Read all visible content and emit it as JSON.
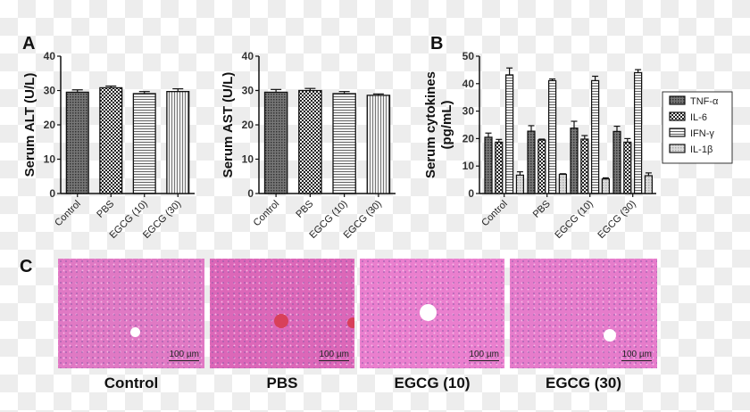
{
  "panels": {
    "a": "A",
    "b": "B",
    "c": "C"
  },
  "chart_data": [
    {
      "type": "bar",
      "ylabel": "Serum ALT (U/L)",
      "categories": [
        "Control",
        "PBS",
        "EGCG (10)",
        "EGCG (30)"
      ],
      "values": [
        29.5,
        30.8,
        29.1,
        29.7
      ],
      "errors": [
        0.7,
        0.5,
        0.6,
        0.8
      ],
      "ylim": [
        0,
        40
      ],
      "yticks": [
        0,
        10,
        20,
        30,
        40
      ],
      "grid": false
    },
    {
      "type": "bar",
      "ylabel": "Serum AST (U/L)",
      "categories": [
        "Control",
        "PBS",
        "EGCG (10)",
        "EGCG (30)"
      ],
      "values": [
        29.5,
        30.0,
        29.1,
        28.6
      ],
      "errors": [
        0.8,
        0.6,
        0.6,
        0.4
      ],
      "ylim": [
        0,
        40
      ],
      "yticks": [
        0,
        10,
        20,
        30,
        40
      ],
      "grid": false
    },
    {
      "type": "bar",
      "ylabel": "Serum cytokines (pg/mL)",
      "ylabel_lines": [
        "Serum cytokines",
        "(pg/mL)"
      ],
      "categories": [
        "Control",
        "PBS",
        "EGCG (10)",
        "EGCG (30)"
      ],
      "series": [
        {
          "name": "TNF-α",
          "values": [
            20.5,
            22.7,
            23.8,
            22.6
          ],
          "errors": [
            1.5,
            2.0,
            2.5,
            1.9
          ]
        },
        {
          "name": "IL-6",
          "values": [
            18.7,
            19.5,
            19.8,
            18.7
          ],
          "errors": [
            1.0,
            0.3,
            1.3,
            1.3
          ]
        },
        {
          "name": "IFN-γ",
          "values": [
            43.2,
            41.1,
            41.1,
            44.0
          ],
          "errors": [
            2.5,
            0.6,
            1.6,
            1.1
          ]
        },
        {
          "name": "IL-1β",
          "values": [
            6.7,
            7.0,
            5.3,
            6.5
          ],
          "errors": [
            1.2,
            0.2,
            0.4,
            1.0
          ]
        }
      ],
      "ylim": [
        0,
        50
      ],
      "yticks": [
        0,
        10,
        20,
        30,
        40,
        50
      ],
      "legend": "right",
      "grid": false
    }
  ],
  "histology": [
    {
      "label": "Control",
      "scale": "100 µm"
    },
    {
      "label": "PBS",
      "scale": "100 µm"
    },
    {
      "label": "EGCG (10)",
      "scale": "100 µm"
    },
    {
      "label": "EGCG (30)",
      "scale": "100 µm"
    }
  ],
  "colors": {
    "tissue": "#e070c0",
    "nuclei": "#8a5aa8",
    "axis": "#111111"
  }
}
